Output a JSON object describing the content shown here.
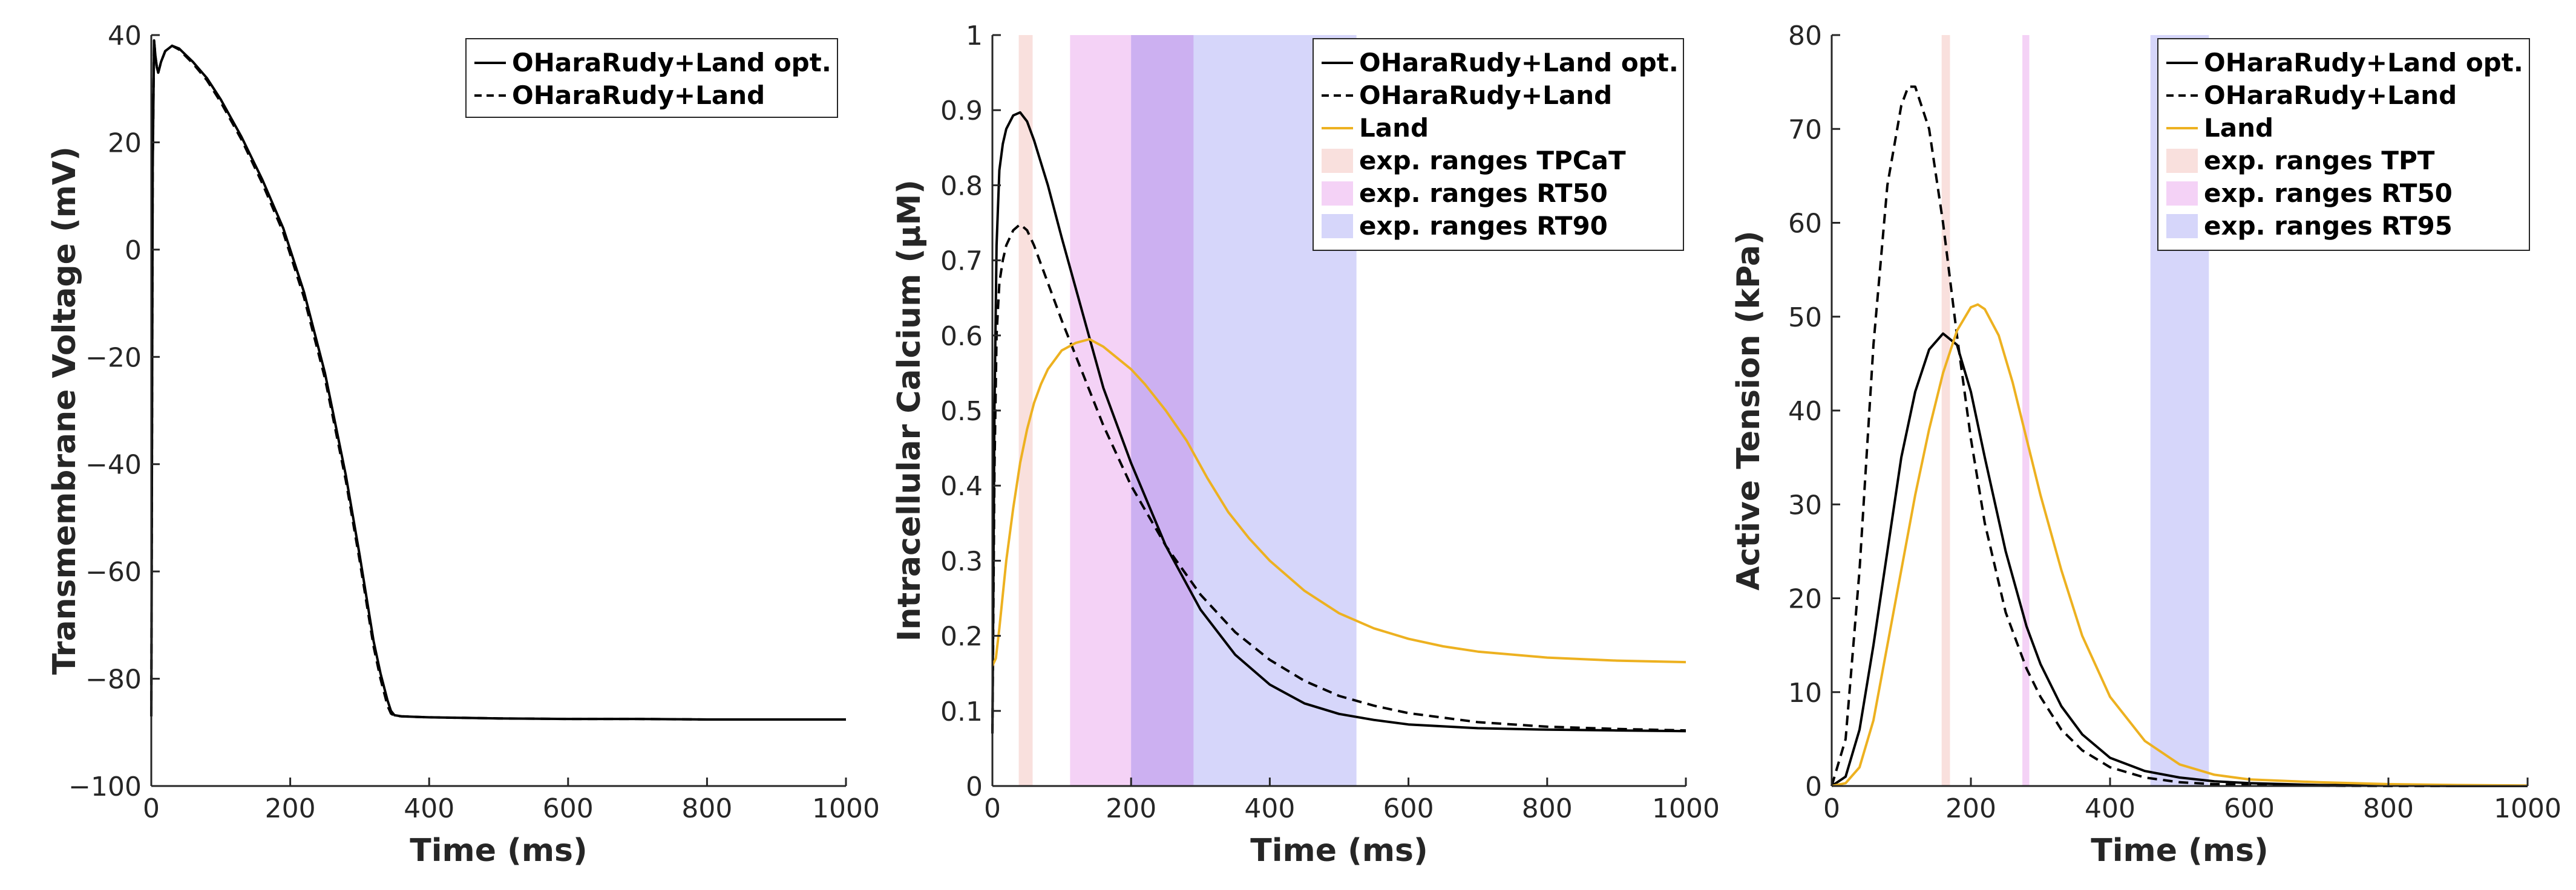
{
  "chart_data": [
    {
      "type": "line",
      "xlabel": "Time (ms)",
      "ylabel": "Transmembrane Voltage (mV)",
      "xlim": [
        0,
        1000
      ],
      "ylim": [
        -100,
        40
      ],
      "xticks": [
        0,
        200,
        400,
        600,
        800,
        1000
      ],
      "yticks": [
        -100,
        -80,
        -60,
        -40,
        -20,
        0,
        20,
        40
      ],
      "legend_position": "top-right",
      "bands": [],
      "series": [
        {
          "name": "OHaraRudy+Land opt.",
          "color": "#000000",
          "style": "solid",
          "x": [
            0,
            2,
            4,
            6,
            8,
            10,
            14,
            20,
            30,
            40,
            60,
            80,
            100,
            130,
            160,
            190,
            220,
            250,
            280,
            300,
            320,
            330,
            340,
            345,
            350,
            360,
            380,
            400,
            450,
            500,
            600,
            700,
            800,
            900,
            1000
          ],
          "y": [
            -87,
            15,
            39,
            36,
            34,
            33,
            35,
            37,
            38,
            37.5,
            35,
            32,
            28,
            21,
            13,
            4,
            -8,
            -23,
            -42,
            -57,
            -73,
            -79,
            -84,
            -86,
            -86.8,
            -87,
            -87.1,
            -87.2,
            -87.3,
            -87.4,
            -87.5,
            -87.5,
            -87.6,
            -87.6,
            -87.6
          ]
        },
        {
          "name": "OHaraRudy+Land",
          "color": "#000000",
          "style": "dashed",
          "x": [
            0,
            2,
            4,
            6,
            8,
            10,
            14,
            20,
            30,
            40,
            60,
            80,
            100,
            130,
            160,
            190,
            220,
            250,
            280,
            300,
            320,
            330,
            340,
            345,
            350,
            360,
            380,
            400,
            450,
            500,
            600,
            700,
            800,
            900,
            1000
          ],
          "y": [
            -87,
            15,
            39,
            36,
            34,
            33,
            35,
            37,
            38,
            37.3,
            34.7,
            31.6,
            27.5,
            20.5,
            12.3,
            3.2,
            -9,
            -24,
            -43,
            -58,
            -74,
            -80,
            -85,
            -86.5,
            -86.9,
            -87,
            -87.1,
            -87.2,
            -87.3,
            -87.4,
            -87.5,
            -87.5,
            -87.6,
            -87.6,
            -87.6
          ]
        }
      ]
    },
    {
      "type": "line",
      "xlabel": "Time (ms)",
      "ylabel": "Intracellular Calcium (μM)",
      "xlim": [
        0,
        1000
      ],
      "ylim": [
        0,
        1
      ],
      "xticks": [
        0,
        200,
        400,
        600,
        800,
        1000
      ],
      "yticks": [
        0,
        0.1,
        0.2,
        0.3,
        0.4,
        0.5,
        0.6,
        0.7,
        0.8,
        0.9,
        1
      ],
      "legend_position": "top-right",
      "bands": [
        {
          "name": "exp. ranges TPCaT",
          "color": "#f9e0dd",
          "x0": 38,
          "x1": 58
        },
        {
          "name": "exp. ranges RT50",
          "color": "#f4d2f6",
          "x0": 112,
          "x1": 290
        },
        {
          "name": "exp. ranges RT90",
          "color": "#d6d6fa",
          "x0": 200,
          "x1": 525
        }
      ],
      "series": [
        {
          "name": "OHaraRudy+Land opt.",
          "color": "#000000",
          "style": "solid",
          "x": [
            0,
            3,
            6,
            10,
            15,
            20,
            30,
            40,
            50,
            60,
            80,
            100,
            130,
            160,
            200,
            250,
            300,
            350,
            400,
            450,
            500,
            550,
            600,
            700,
            800,
            900,
            1000
          ],
          "y": [
            0.07,
            0.5,
            0.72,
            0.82,
            0.855,
            0.875,
            0.893,
            0.897,
            0.885,
            0.86,
            0.8,
            0.73,
            0.63,
            0.53,
            0.43,
            0.32,
            0.235,
            0.175,
            0.135,
            0.11,
            0.096,
            0.088,
            0.082,
            0.077,
            0.075,
            0.074,
            0.073
          ]
        },
        {
          "name": "OHaraRudy+Land",
          "color": "#000000",
          "style": "dashed",
          "x": [
            0,
            3,
            6,
            10,
            15,
            20,
            30,
            40,
            50,
            60,
            80,
            100,
            130,
            160,
            200,
            250,
            300,
            350,
            400,
            450,
            500,
            550,
            600,
            700,
            800,
            900,
            1000
          ],
          "y": [
            0.07,
            0.42,
            0.6,
            0.67,
            0.7,
            0.72,
            0.74,
            0.748,
            0.74,
            0.72,
            0.67,
            0.62,
            0.55,
            0.48,
            0.4,
            0.32,
            0.255,
            0.205,
            0.168,
            0.14,
            0.12,
            0.107,
            0.097,
            0.085,
            0.079,
            0.076,
            0.074
          ]
        },
        {
          "name": "Land",
          "color": "#edb120",
          "style": "solid",
          "x": [
            0,
            5,
            10,
            20,
            30,
            40,
            50,
            60,
            70,
            80,
            100,
            120,
            140,
            160,
            180,
            200,
            220,
            250,
            280,
            310,
            340,
            370,
            400,
            450,
            500,
            550,
            600,
            650,
            700,
            800,
            900,
            1000
          ],
          "y": [
            0.16,
            0.17,
            0.21,
            0.3,
            0.37,
            0.43,
            0.475,
            0.51,
            0.535,
            0.555,
            0.58,
            0.59,
            0.595,
            0.585,
            0.57,
            0.555,
            0.535,
            0.5,
            0.46,
            0.41,
            0.365,
            0.33,
            0.3,
            0.26,
            0.23,
            0.21,
            0.196,
            0.186,
            0.179,
            0.171,
            0.167,
            0.165
          ]
        }
      ]
    },
    {
      "type": "line",
      "xlabel": "Time (ms)",
      "ylabel": "Active Tension (kPa)",
      "xlim": [
        0,
        1000
      ],
      "ylim": [
        0,
        80
      ],
      "xticks": [
        0,
        200,
        400,
        600,
        800,
        1000
      ],
      "yticks": [
        0,
        10,
        20,
        30,
        40,
        50,
        60,
        70,
        80
      ],
      "legend_position": "top-right",
      "bands": [
        {
          "name": "exp. ranges TPT",
          "color": "#f9e0dd",
          "x0": 158,
          "x1": 170
        },
        {
          "name": "exp. ranges RT50",
          "color": "#f4d2f6",
          "x0": 274,
          "x1": 284
        },
        {
          "name": "exp. ranges RT95",
          "color": "#d6d6fa",
          "x0": 458,
          "x1": 542
        }
      ],
      "series": [
        {
          "name": "OHaraRudy+Land opt.",
          "color": "#000000",
          "style": "solid",
          "x": [
            0,
            20,
            40,
            60,
            80,
            100,
            120,
            140,
            160,
            180,
            200,
            220,
            250,
            280,
            300,
            330,
            360,
            400,
            450,
            500,
            550,
            600,
            700,
            800,
            900,
            1000
          ],
          "y": [
            0,
            1,
            6,
            15,
            25,
            35,
            42,
            46.5,
            48.2,
            47,
            42,
            35,
            25,
            17,
            13,
            8.5,
            5.5,
            3,
            1.6,
            0.9,
            0.5,
            0.3,
            0.1,
            0.05,
            0,
            0
          ]
        },
        {
          "name": "OHaraRudy+Land",
          "color": "#000000",
          "style": "dashed",
          "x": [
            0,
            20,
            40,
            60,
            80,
            100,
            110,
            120,
            140,
            160,
            180,
            200,
            220,
            250,
            280,
            300,
            330,
            360,
            400,
            450,
            500,
            550,
            600,
            700,
            800,
            1000
          ],
          "y": [
            0,
            5,
            23,
            47,
            64,
            72.5,
            74.5,
            74.5,
            70,
            60,
            48,
            37,
            28,
            18.5,
            12.5,
            9.5,
            6,
            3.8,
            2,
            0.9,
            0.4,
            0.2,
            0.1,
            0.03,
            0,
            0
          ]
        },
        {
          "name": "Land",
          "color": "#edb120",
          "style": "solid",
          "x": [
            0,
            20,
            40,
            60,
            80,
            100,
            120,
            140,
            160,
            180,
            200,
            210,
            220,
            240,
            260,
            280,
            300,
            330,
            360,
            400,
            450,
            500,
            550,
            600,
            700,
            800,
            900,
            1000
          ],
          "y": [
            0,
            0.3,
            2,
            7,
            15,
            23,
            31,
            38,
            44,
            48.5,
            51,
            51.3,
            50.8,
            48,
            43,
            37,
            31,
            23,
            16,
            9.5,
            4.8,
            2.3,
            1.2,
            0.7,
            0.4,
            0.2,
            0.1,
            0.05
          ]
        }
      ]
    }
  ]
}
